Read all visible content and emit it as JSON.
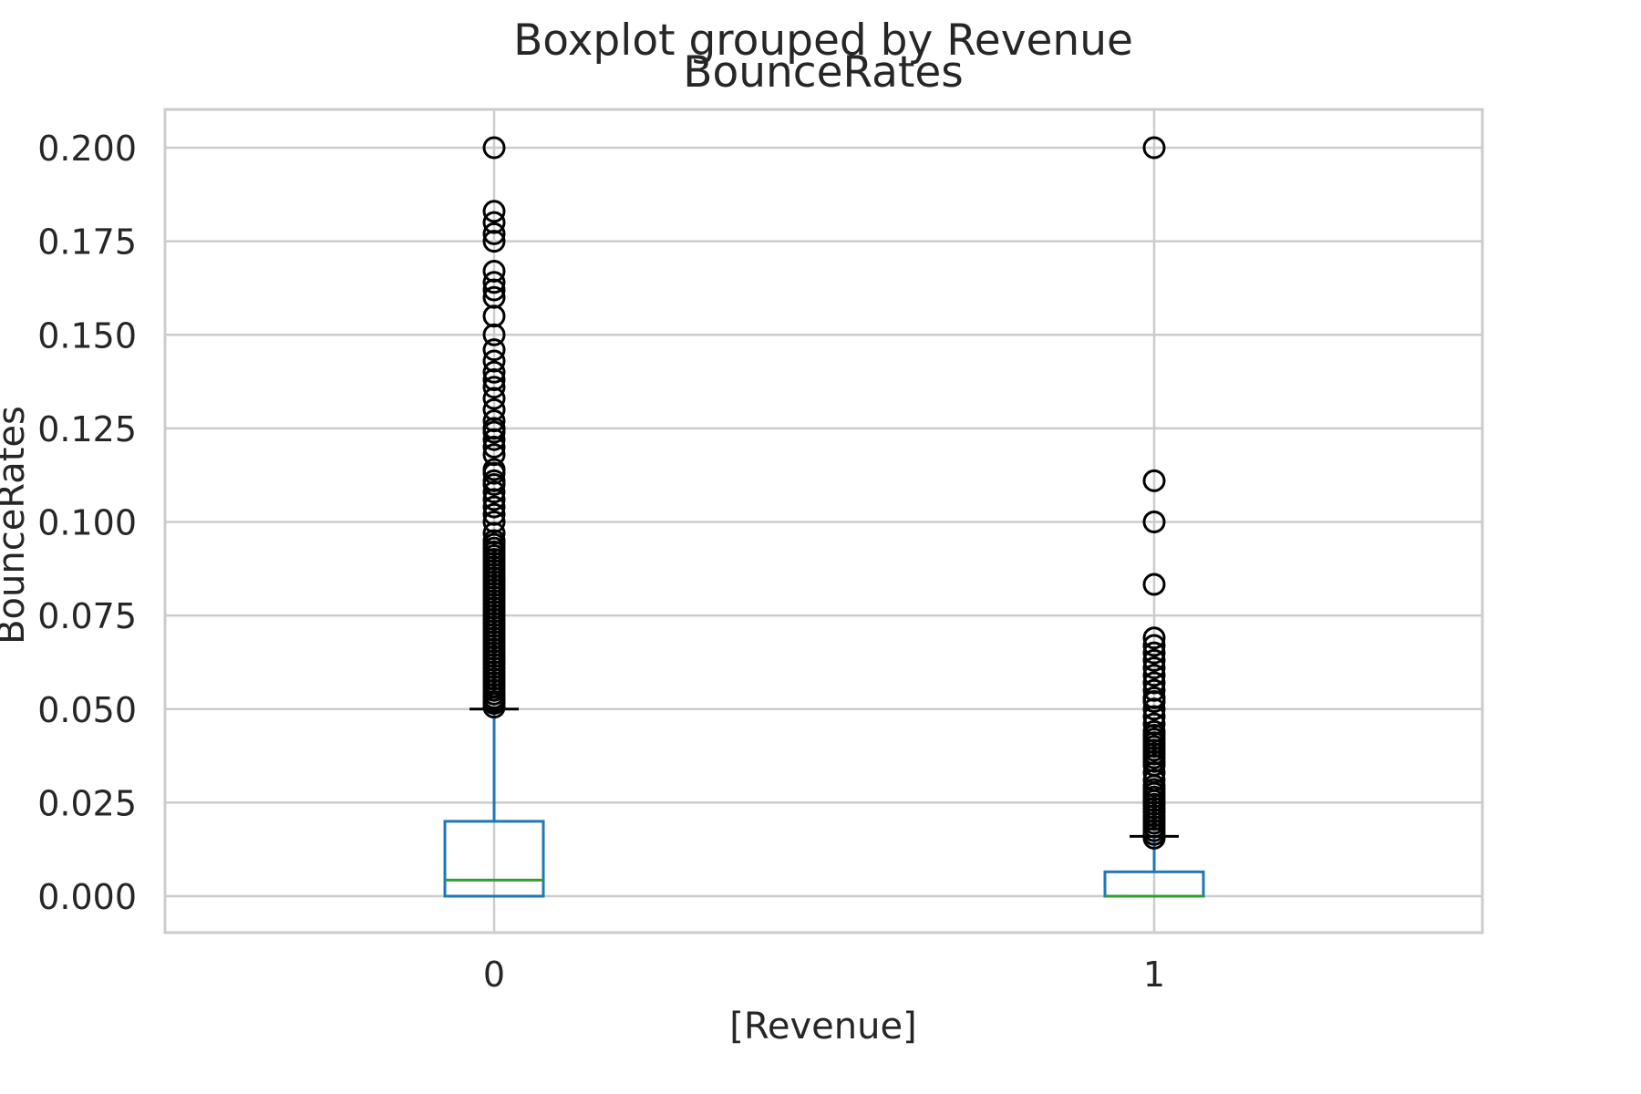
{
  "chart_data": {
    "type": "boxplot",
    "suptitle": "Boxplot grouped by Revenue",
    "title": "BounceRates",
    "xlabel": "[Revenue]",
    "ylabel": "BounceRates",
    "ylim": [
      -0.01,
      0.21
    ],
    "yticks": [
      "0.000",
      "0.025",
      "0.050",
      "0.075",
      "0.100",
      "0.125",
      "0.150",
      "0.175",
      "0.200"
    ],
    "grid": true,
    "categories": [
      "0",
      "1"
    ],
    "colors": {
      "box": "#1f77b4",
      "median": "#2ca02c",
      "whisker": "#1f77b4",
      "cap": "#000000",
      "flier": "#000000",
      "grid": "#cccccc",
      "frame": "#cccccc"
    },
    "boxes": [
      {
        "category": "0",
        "min": 0.0,
        "q1": 0.0,
        "median": 0.0043,
        "q3": 0.02,
        "max": 0.05,
        "fliers": [
          0.0505,
          0.0515,
          0.052,
          0.053,
          0.054,
          0.055,
          0.056,
          0.057,
          0.058,
          0.059,
          0.06,
          0.061,
          0.062,
          0.063,
          0.064,
          0.065,
          0.066,
          0.067,
          0.068,
          0.069,
          0.07,
          0.071,
          0.072,
          0.073,
          0.074,
          0.075,
          0.076,
          0.077,
          0.078,
          0.079,
          0.08,
          0.081,
          0.082,
          0.083,
          0.084,
          0.085,
          0.086,
          0.087,
          0.088,
          0.089,
          0.09,
          0.091,
          0.092,
          0.093,
          0.094,
          0.095,
          0.097,
          0.1,
          0.102,
          0.104,
          0.106,
          0.108,
          0.11,
          0.111,
          0.113,
          0.114,
          0.118,
          0.12,
          0.122,
          0.124,
          0.125,
          0.127,
          0.13,
          0.133,
          0.136,
          0.138,
          0.14,
          0.143,
          0.146,
          0.15,
          0.155,
          0.16,
          0.162,
          0.164,
          0.167,
          0.175,
          0.177,
          0.18,
          0.183,
          0.2
        ]
      },
      {
        "category": "1",
        "min": 0.0,
        "q1": 0.0,
        "median": 0.0,
        "q3": 0.0065,
        "max": 0.016,
        "fliers": [
          0.0155,
          0.0165,
          0.0175,
          0.0185,
          0.0195,
          0.0205,
          0.0215,
          0.0225,
          0.0235,
          0.0245,
          0.0255,
          0.0265,
          0.0275,
          0.0285,
          0.0295,
          0.031,
          0.033,
          0.035,
          0.036,
          0.037,
          0.038,
          0.039,
          0.04,
          0.041,
          0.042,
          0.043,
          0.044,
          0.046,
          0.048,
          0.05,
          0.052,
          0.053,
          0.055,
          0.057,
          0.059,
          0.061,
          0.063,
          0.065,
          0.067,
          0.069,
          0.0833,
          0.1,
          0.111,
          0.2
        ]
      }
    ]
  }
}
